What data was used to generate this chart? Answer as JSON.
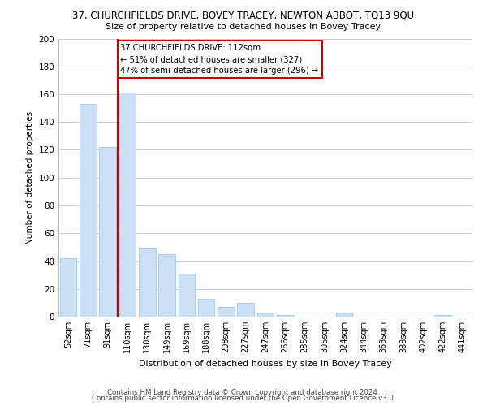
{
  "title": "37, CHURCHFIELDS DRIVE, BOVEY TRACEY, NEWTON ABBOT, TQ13 9QU",
  "subtitle": "Size of property relative to detached houses in Bovey Tracey",
  "xlabel": "Distribution of detached houses by size in Bovey Tracey",
  "ylabel": "Number of detached properties",
  "categories": [
    "52sqm",
    "71sqm",
    "91sqm",
    "110sqm",
    "130sqm",
    "149sqm",
    "169sqm",
    "188sqm",
    "208sqm",
    "227sqm",
    "247sqm",
    "266sqm",
    "285sqm",
    "305sqm",
    "324sqm",
    "344sqm",
    "363sqm",
    "383sqm",
    "402sqm",
    "422sqm",
    "441sqm"
  ],
  "values": [
    42,
    153,
    122,
    161,
    49,
    45,
    31,
    13,
    7,
    10,
    3,
    1,
    0,
    0,
    3,
    0,
    0,
    0,
    0,
    1,
    0
  ],
  "bar_color": "#cce0f5",
  "bar_edge_color": "#aaccee",
  "vline_x_index": 3,
  "vline_color": "#cc0000",
  "annotation_box_text": "37 CHURCHFIELDS DRIVE: 112sqm\n← 51% of detached houses are smaller (327)\n47% of semi-detached houses are larger (296) →",
  "annotation_box_color": "#cc0000",
  "ylim": [
    0,
    200
  ],
  "yticks": [
    0,
    20,
    40,
    60,
    80,
    100,
    120,
    140,
    160,
    180,
    200
  ],
  "footer_line1": "Contains HM Land Registry data © Crown copyright and database right 2024.",
  "footer_line2": "Contains public sector information licensed under the Open Government Licence v3.0.",
  "grid_color": "#cccccc",
  "background_color": "#ffffff"
}
